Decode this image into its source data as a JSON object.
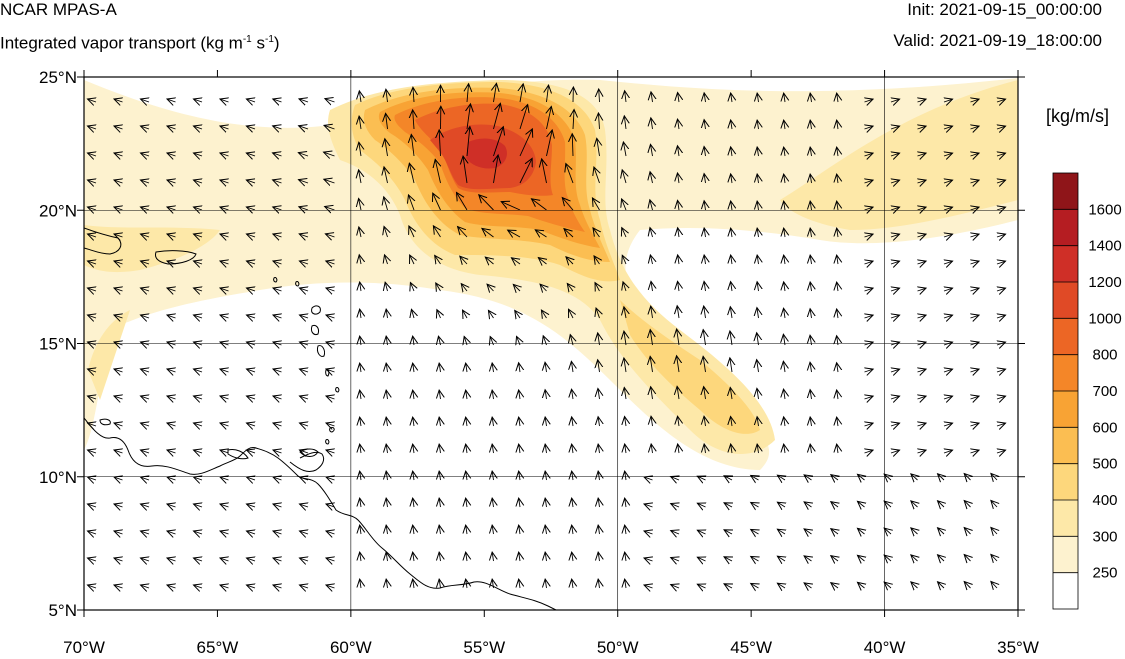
{
  "header": {
    "model": "NCAR MPAS-A",
    "variable_prefix": "Integrated vapor transport (kg m",
    "variable_exp1": "-1",
    "variable_mid": " s",
    "variable_exp2": "-1",
    "variable_suffix": ")",
    "init": "Init: 2021-09-15_00:00:00",
    "valid": "Valid: 2021-09-19_18:00:00"
  },
  "colorbar": {
    "title": "[kg/m/s]",
    "levels": [
      250,
      300,
      400,
      500,
      600,
      700,
      800,
      1000,
      1200,
      1400,
      1600
    ],
    "level_labels": [
      "250",
      "300",
      "400",
      "500",
      "600",
      "700",
      "800",
      "1000",
      "1200",
      "1400",
      "1600"
    ],
    "colors": [
      "#ffffff",
      "#fdf2cf",
      "#fde8a8",
      "#fdd77c",
      "#fbbe52",
      "#f8a334",
      "#f48628",
      "#ec6625",
      "#e04a26",
      "#cf2f27",
      "#b51d22",
      "#8f1519"
    ]
  },
  "map": {
    "lon_range": [
      -70,
      -35
    ],
    "lat_range": [
      5,
      25
    ],
    "x_ticks": [
      "70°W",
      "65°W",
      "60°W",
      "55°W",
      "50°W",
      "45°W",
      "40°W",
      "35°W"
    ],
    "y_ticks": [
      "25°N",
      "20°N",
      "15°N",
      "10°N",
      "5°N"
    ],
    "grid_lons": [
      -60,
      -50,
      -40
    ],
    "grid_lats": [
      10,
      15,
      20
    ]
  }
}
